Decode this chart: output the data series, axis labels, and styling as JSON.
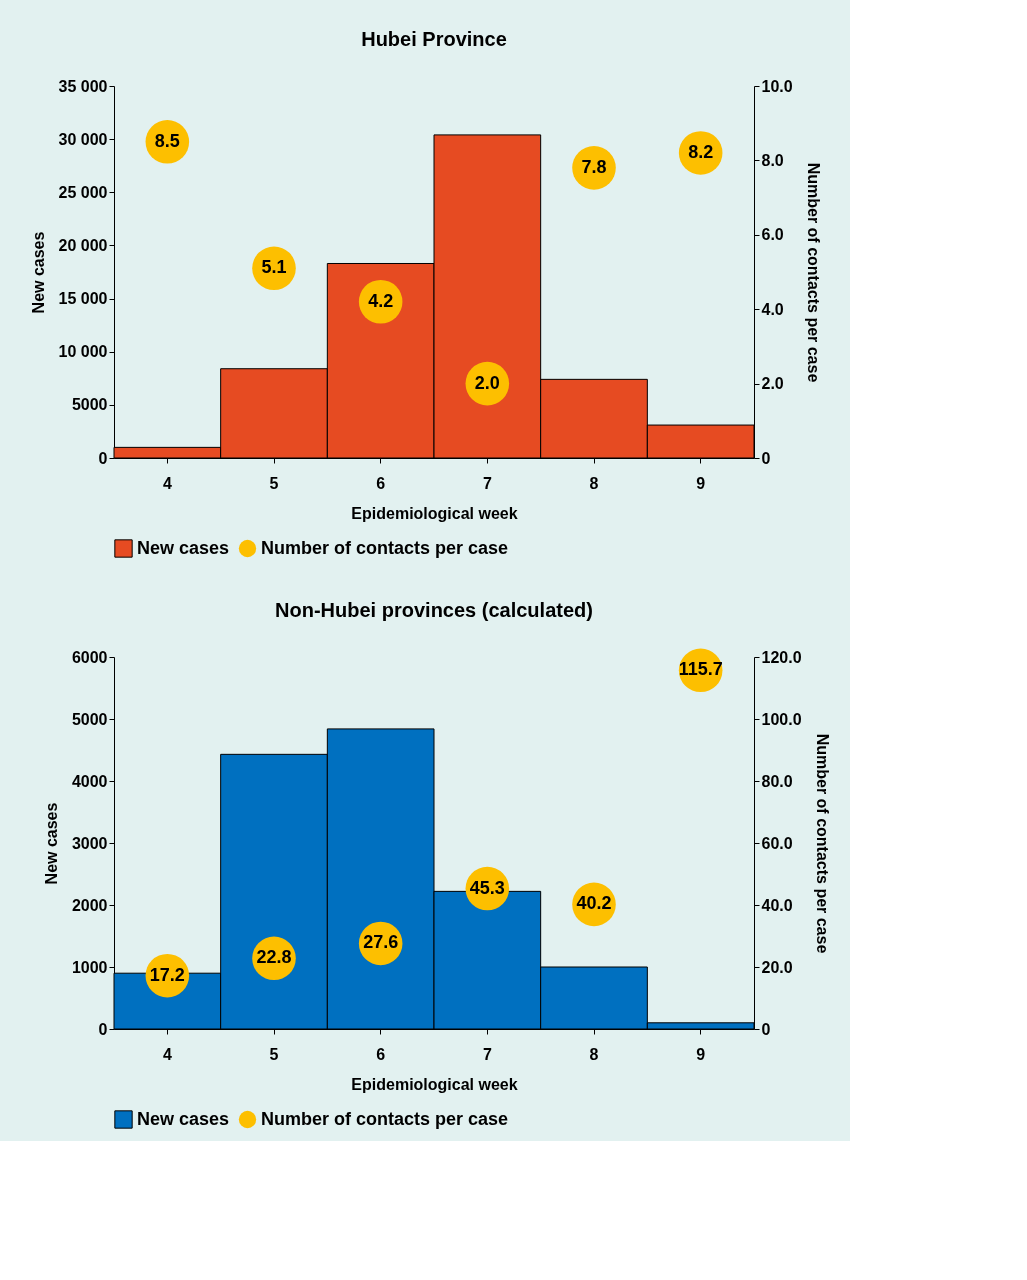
{
  "chart_data": [
    {
      "type": "bar",
      "title": "Hubei Province",
      "xlabel": "Epidemiological week",
      "ylabel": "New cases",
      "y2label": "Number of contacts per case",
      "categories": [
        "4",
        "5",
        "6",
        "7",
        "8",
        "9"
      ],
      "ylim": [
        0,
        35000
      ],
      "yticks": [
        0,
        5000,
        {
          "value": 10000,
          "label": "10 000"
        },
        {
          "value": 15000,
          "label": "15 000"
        },
        {
          "value": 20000,
          "label": "20 000"
        },
        {
          "value": 25000,
          "label": "25 000"
        },
        {
          "value": 30000,
          "label": "30 000"
        },
        {
          "value": 35000,
          "label": "35 000"
        }
      ],
      "y2lim": [
        0,
        10
      ],
      "y2ticks": [
        0,
        {
          "value": 2,
          "label": "2.0"
        },
        {
          "value": 4,
          "label": "4.0"
        },
        {
          "value": 6,
          "label": "6.0"
        },
        {
          "value": 8,
          "label": "8.0"
        },
        {
          "value": 10,
          "label": "10.0"
        }
      ],
      "legend": "bottom",
      "grid": false,
      "series": [
        {
          "name": "New cases",
          "color": "#e64b22",
          "values": [
            1000,
            8400,
            18300,
            30400,
            7400,
            3100
          ]
        },
        {
          "name": "Number of contacts per case",
          "type": "scatter",
          "axis": "y2",
          "marker": "circle",
          "color": "#fdbf00",
          "values": [
            8.5,
            5.1,
            4.2,
            2.0,
            7.8,
            8.2
          ],
          "value_labels": [
            "8.5",
            "5.1",
            "4.2",
            "2.0",
            "7.8",
            "8.2"
          ]
        }
      ]
    },
    {
      "type": "bar",
      "title": "Non-Hubei provinces (calculated)",
      "xlabel": "Epidemiological week",
      "ylabel": "New cases",
      "y2label": "Number of contacts per case",
      "categories": [
        "4",
        "5",
        "6",
        "7",
        "8",
        "9"
      ],
      "ylim": [
        0,
        6000
      ],
      "yticks": [
        0,
        1000,
        2000,
        3000,
        4000,
        5000,
        6000
      ],
      "y2lim": [
        0,
        120
      ],
      "y2ticks": [
        0,
        {
          "value": 20,
          "label": "20.0"
        },
        {
          "value": 40,
          "label": "40.0"
        },
        {
          "value": 60,
          "label": "60.0"
        },
        {
          "value": 80,
          "label": "80.0"
        },
        {
          "value": 100,
          "label": "100.0"
        },
        {
          "value": 120,
          "label": "120.0"
        }
      ],
      "legend": "bottom",
      "grid": false,
      "series": [
        {
          "name": "New cases",
          "color": "#0070c0",
          "values": [
            900,
            4430,
            4840,
            2220,
            1000,
            100
          ]
        },
        {
          "name": "Number of contacts per case",
          "type": "scatter",
          "axis": "y2",
          "marker": "circle",
          "color": "#fdbf00",
          "values": [
            17.2,
            22.8,
            27.6,
            45.3,
            40.2,
            115.7
          ],
          "value_labels": [
            "17.2",
            "22.8",
            "27.6",
            "45.3",
            "40.2",
            "115.7"
          ]
        }
      ]
    }
  ]
}
